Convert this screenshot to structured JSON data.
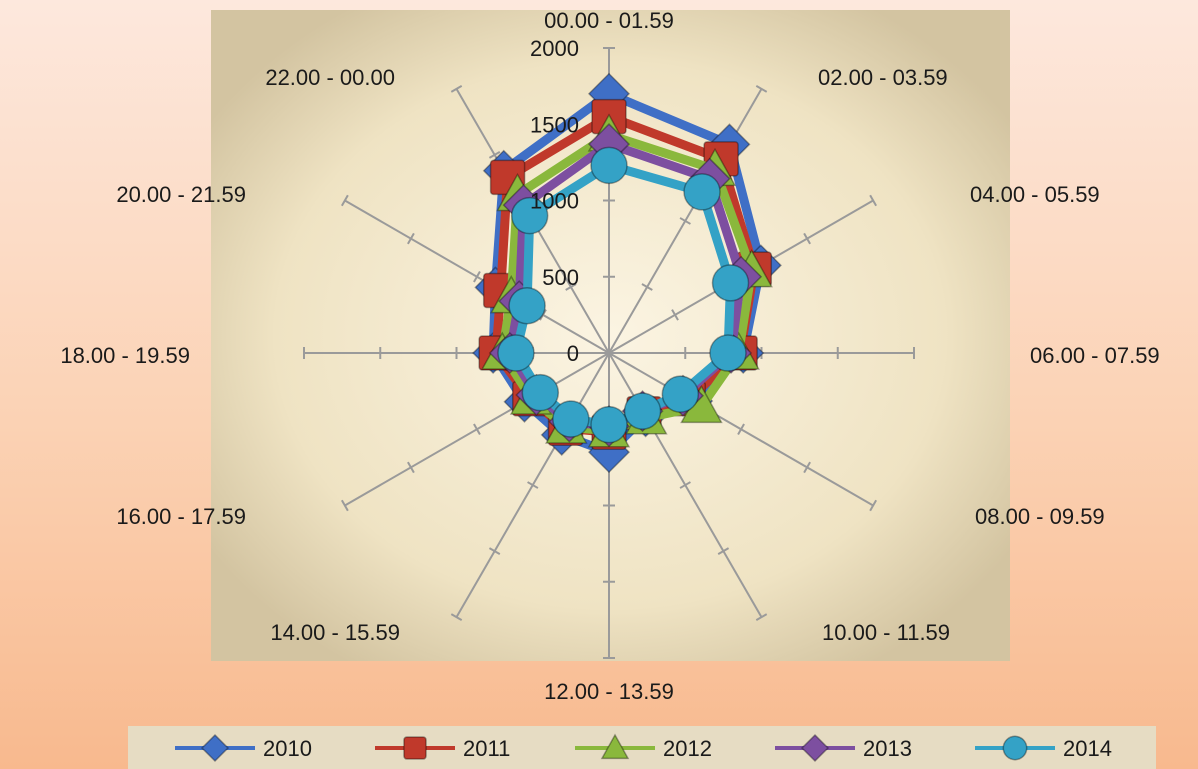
{
  "chart_data": {
    "type": "radar",
    "categories": [
      "00.00 - 01.59",
      "02.00 - 03.59",
      "04.00 - 05.59",
      "06.00 - 07.59",
      "08.00 - 09.59",
      "10.00 - 11.59",
      "12.00 - 13.59",
      "14.00 - 15.59",
      "16.00 - 17.59",
      "18.00 - 19.59",
      "20.00 - 21.59",
      "22.00 - 00.00"
    ],
    "radial_ticks": [
      0,
      500,
      1000,
      1500,
      2000
    ],
    "rlim": [
      0,
      2000
    ],
    "legend_position": "bottom",
    "series": [
      {
        "name": "2010",
        "color": "#3f6fc6",
        "marker": "diamond",
        "values": [
          1700,
          1580,
          1150,
          880,
          630,
          480,
          650,
          620,
          640,
          760,
          860,
          1380
        ]
      },
      {
        "name": "2011",
        "color": "#c0392b",
        "marker": "square",
        "values": [
          1550,
          1470,
          1100,
          860,
          600,
          460,
          520,
          570,
          600,
          740,
          820,
          1330
        ]
      },
      {
        "name": "2012",
        "color": "#8ab83c",
        "marker": "triangle",
        "values": [
          1430,
          1390,
          1080,
          850,
          700,
          490,
          510,
          560,
          590,
          700,
          740,
          1200
        ]
      },
      {
        "name": "2013",
        "color": "#7d4fa0",
        "marker": "diamond",
        "values": [
          1370,
          1320,
          1000,
          800,
          560,
          440,
          480,
          520,
          550,
          650,
          680,
          1120
        ]
      },
      {
        "name": "2014",
        "color": "#34a2c6",
        "marker": "circle",
        "values": [
          1230,
          1220,
          920,
          780,
          540,
          440,
          470,
          500,
          520,
          610,
          620,
          1040
        ]
      }
    ]
  }
}
